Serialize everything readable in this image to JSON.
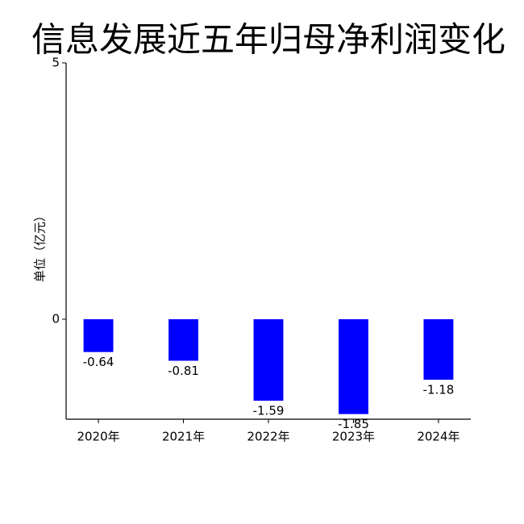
{
  "chart_data": {
    "type": "bar",
    "title": "信息发展近五年归母净利润变化",
    "ylabel": "单位（亿元）",
    "categories": [
      "2020年",
      "2021年",
      "2022年",
      "2023年",
      "2024年"
    ],
    "values": [
      -0.64,
      -0.81,
      -1.59,
      -1.85,
      -1.18
    ],
    "color": "#0000ff",
    "ylim": [
      -1.95,
      5
    ],
    "yticks": [
      0,
      5
    ]
  }
}
